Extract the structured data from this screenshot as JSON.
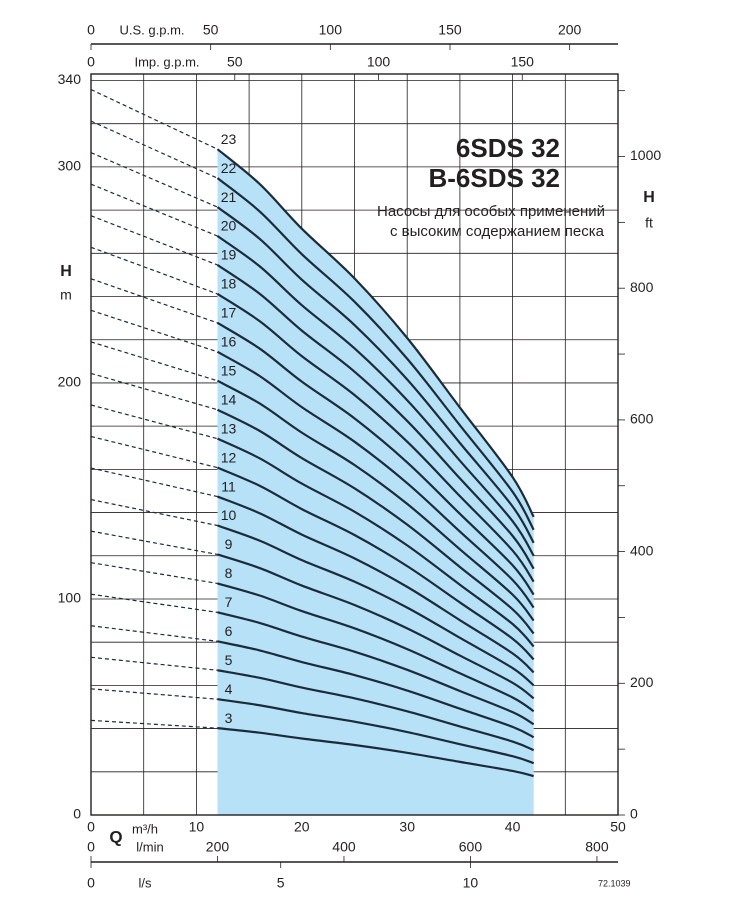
{
  "chart_data": {
    "type": "line",
    "title": "6SDS 32",
    "title2": "B-6SDS 32",
    "subtitle": [
      "Насосы для особых применений",
      "с высоким содержанием песка"
    ],
    "code": "72.1039",
    "q_label": "Q",
    "x_label": "m³/h",
    "y_label": "H",
    "y_unit": "m",
    "y2_label": "H",
    "y2_unit": "ft",
    "line_color": "#1c2b3a",
    "fill_color": "#b7e1f7",
    "xlim": [
      0,
      50
    ],
    "xticks": [
      0,
      10,
      20,
      30,
      40,
      50
    ],
    "xminor": [
      5,
      15,
      25,
      35,
      45
    ],
    "ylim": [
      0,
      343
    ],
    "yticks": [
      0,
      100,
      200,
      300,
      340
    ],
    "ygrid": [
      20,
      40,
      60,
      80,
      120,
      140,
      160,
      180,
      220,
      240,
      260,
      280,
      320
    ],
    "y2lim": [
      0,
      1125.3
    ],
    "y2ticks": [
      0,
      200,
      400,
      600,
      800,
      1000
    ],
    "y2minor": [
      100,
      300,
      500,
      700,
      900,
      1100
    ],
    "top_axes": [
      {
        "label": "U.S. g.p.m.",
        "xlim": [
          0,
          220.2
        ],
        "xticks": [
          0,
          50,
          100,
          150,
          200
        ]
      },
      {
        "label": "Imp. g.p.m.",
        "xlim": [
          0,
          183.3
        ],
        "xticks": [
          0,
          50,
          100,
          150
        ]
      }
    ],
    "bottom_axes": [
      {
        "label": "l/min",
        "xlim": [
          0,
          833.3
        ],
        "xticks": [
          0,
          200,
          400,
          600,
          800
        ]
      },
      {
        "label": "l/s",
        "xlim": [
          0,
          13.89
        ],
        "xticks": [
          0,
          5,
          10
        ]
      }
    ],
    "x": [
      0,
      12,
      16,
      20,
      25,
      30,
      35,
      40,
      42
    ],
    "series": [
      {
        "name": "3",
        "values": [
          43.8,
          40.2,
          38.1,
          35.4,
          32.4,
          28.8,
          24.6,
          20.4,
          18
        ]
      },
      {
        "name": "4",
        "values": [
          58.4,
          53.6,
          50.8,
          47.2,
          43.2,
          38.4,
          32.8,
          27.2,
          24
        ]
      },
      {
        "name": "5",
        "values": [
          73,
          67,
          63.5,
          59,
          54,
          48,
          41,
          34,
          30
        ]
      },
      {
        "name": "6",
        "values": [
          87.6,
          80.4,
          76.2,
          70.8,
          64.8,
          57.6,
          49.2,
          40.8,
          36
        ]
      },
      {
        "name": "7",
        "values": [
          102.2,
          93.8,
          88.9,
          82.6,
          75.6,
          67.2,
          57.4,
          47.6,
          42
        ]
      },
      {
        "name": "8",
        "values": [
          116.8,
          107.2,
          101.6,
          94.4,
          86.4,
          76.8,
          65.6,
          54.4,
          48
        ]
      },
      {
        "name": "9",
        "values": [
          131.4,
          120.6,
          114.3,
          106.2,
          97.2,
          86.4,
          73.8,
          61.2,
          54
        ]
      },
      {
        "name": "10",
        "values": [
          146,
          134,
          127,
          118,
          108,
          96,
          82,
          68,
          60
        ]
      },
      {
        "name": "11",
        "values": [
          160.6,
          147.4,
          139.7,
          129.8,
          118.8,
          105.6,
          90.2,
          74.8,
          66
        ]
      },
      {
        "name": "12",
        "values": [
          175.2,
          160.8,
          152.4,
          141.6,
          129.6,
          115.2,
          98.4,
          81.6,
          72
        ]
      },
      {
        "name": "13",
        "values": [
          189.8,
          174.2,
          165.1,
          153.4,
          140.4,
          124.8,
          106.6,
          88.4,
          78
        ]
      },
      {
        "name": "14",
        "values": [
          204.4,
          187.6,
          177.8,
          165.2,
          151.2,
          134.4,
          114.8,
          95.2,
          84
        ]
      },
      {
        "name": "15",
        "values": [
          219,
          201,
          190.5,
          177,
          162,
          144,
          123,
          102,
          90
        ]
      },
      {
        "name": "16",
        "values": [
          233.6,
          214.4,
          203.2,
          188.8,
          172.8,
          153.6,
          131.2,
          108.8,
          96
        ]
      },
      {
        "name": "17",
        "values": [
          248.2,
          227.8,
          215.9,
          200.6,
          183.6,
          163.2,
          139.4,
          115.6,
          102
        ]
      },
      {
        "name": "18",
        "values": [
          262.8,
          241.2,
          228.6,
          212.4,
          194.4,
          172.8,
          147.6,
          122.4,
          108
        ]
      },
      {
        "name": "19",
        "values": [
          277.4,
          254.6,
          241.3,
          224.2,
          205.2,
          182.4,
          155.8,
          129.2,
          114
        ]
      },
      {
        "name": "20",
        "values": [
          292,
          268,
          254,
          236,
          216,
          192,
          164,
          136,
          120
        ]
      },
      {
        "name": "21",
        "values": [
          306.6,
          281.4,
          266.7,
          247.8,
          226.8,
          201.6,
          172.2,
          142.8,
          126
        ]
      },
      {
        "name": "22",
        "values": [
          321.2,
          294.8,
          279.4,
          259.6,
          237.6,
          211.2,
          180.4,
          149.6,
          132
        ]
      },
      {
        "name": "23",
        "values": [
          335.8,
          308.2,
          292.1,
          271.4,
          248.4,
          220.8,
          188.6,
          156.4,
          138
        ]
      }
    ]
  }
}
